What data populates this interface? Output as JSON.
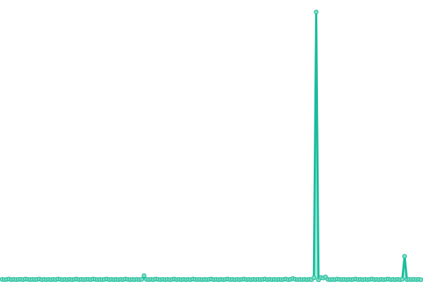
{
  "chart_data": {
    "type": "area",
    "title": "",
    "xlabel": "",
    "ylabel": "",
    "grid": false,
    "axes_visible": false,
    "markers": true,
    "ylim": [
      0,
      1000
    ],
    "colors": {
      "line": "#1abc9c",
      "fill": "#8ee3cf",
      "marker_fill": "#7fdcc4",
      "marker_stroke": "#1abc9c"
    },
    "values": [
      2,
      1,
      2,
      3,
      1,
      2,
      1,
      2,
      2,
      1,
      3,
      2,
      1,
      2,
      1,
      2,
      3,
      1,
      2,
      1,
      2,
      1,
      2,
      1,
      3,
      2,
      1,
      2,
      1,
      2,
      1,
      2,
      3,
      1,
      2,
      1,
      2,
      2,
      1,
      3,
      2,
      1,
      2,
      1,
      2,
      3,
      1,
      2,
      1,
      2,
      1,
      2,
      1,
      3,
      2,
      1,
      2,
      1,
      2,
      1,
      2,
      16,
      2,
      1,
      2,
      1,
      3,
      2,
      1,
      2,
      1,
      2,
      1,
      2,
      3,
      1,
      2,
      1,
      2,
      1,
      2,
      1,
      3,
      2,
      1,
      2,
      1,
      2,
      1,
      2,
      3,
      1,
      2,
      1,
      2,
      1,
      2,
      3,
      1,
      2,
      1,
      2,
      1,
      2,
      3,
      1,
      2,
      1,
      2,
      1,
      2,
      1,
      2,
      3,
      1,
      2,
      1,
      2,
      1,
      2,
      1,
      2,
      3,
      1,
      2,
      5,
      2,
      1,
      2,
      1,
      2,
      1,
      2,
      1,
      8,
      1000,
      0,
      9,
      7,
      11,
      2,
      1,
      2,
      1,
      3,
      2,
      1,
      2,
      1,
      2,
      1,
      2,
      3,
      1,
      2,
      1,
      2,
      1,
      2,
      3,
      1,
      2,
      1,
      2,
      1,
      2,
      3,
      1,
      2,
      1,
      2,
      1,
      2,
      88,
      1,
      2,
      1,
      2,
      1,
      2,
      1
    ]
  }
}
